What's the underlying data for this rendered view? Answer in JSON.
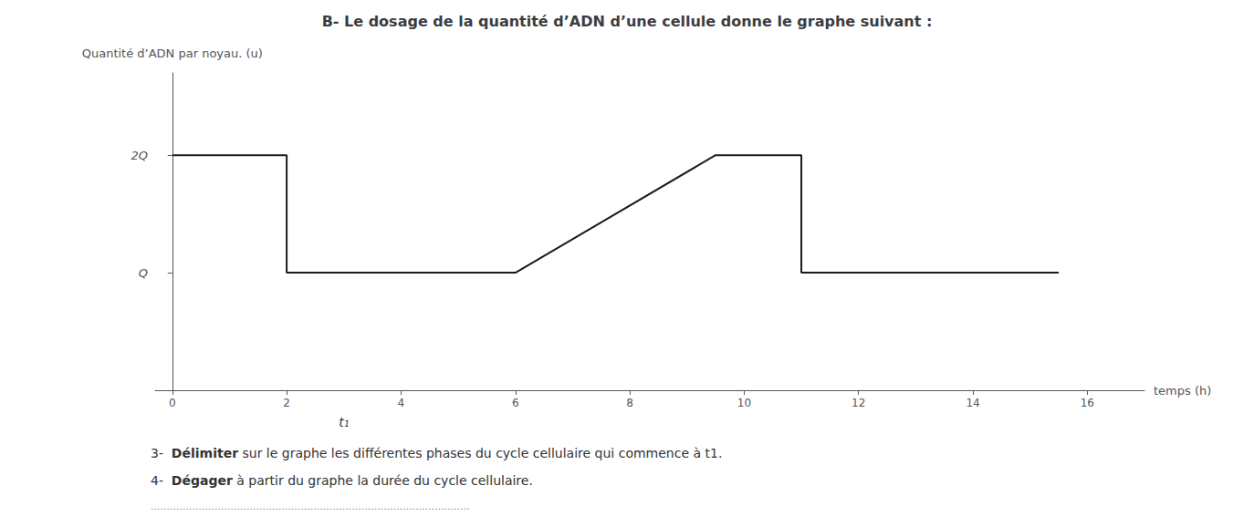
{
  "chart_data": {
    "type": "line",
    "title": "B- Le dosage de la quantité d’ADN d’une cellule donne le graphe suivant :",
    "x_label": "temps (h)",
    "y_label": "Quantité d’ADN par noyau. (u)",
    "x": [
      0,
      2,
      2,
      3,
      6,
      9.5,
      11,
      11,
      15.5
    ],
    "values": [
      2,
      2,
      1,
      1,
      1,
      2,
      2,
      1,
      1
    ],
    "color": "#1a1a1a",
    "xlim": [
      -0.3,
      17
    ],
    "xticks": [
      0,
      2,
      4,
      6,
      8,
      10,
      12,
      14,
      16
    ],
    "ylim": [
      0,
      2.7
    ],
    "yticks": [
      {
        "value": 1,
        "label": "Q"
      },
      {
        "value": 2,
        "label": "2Q"
      }
    ],
    "grid": false,
    "annotations": [
      {
        "text": "t₁",
        "x": 3
      },
      {
        "text": "3-  Délimiter sur le graphe les différentes phases du cycle cellulaire qui commence à t1."
      },
      {
        "text": "4-  Dégager à partir du graphe la durée du cycle cellulaire."
      },
      {
        "text": "...................................................................................................."
      }
    ]
  }
}
